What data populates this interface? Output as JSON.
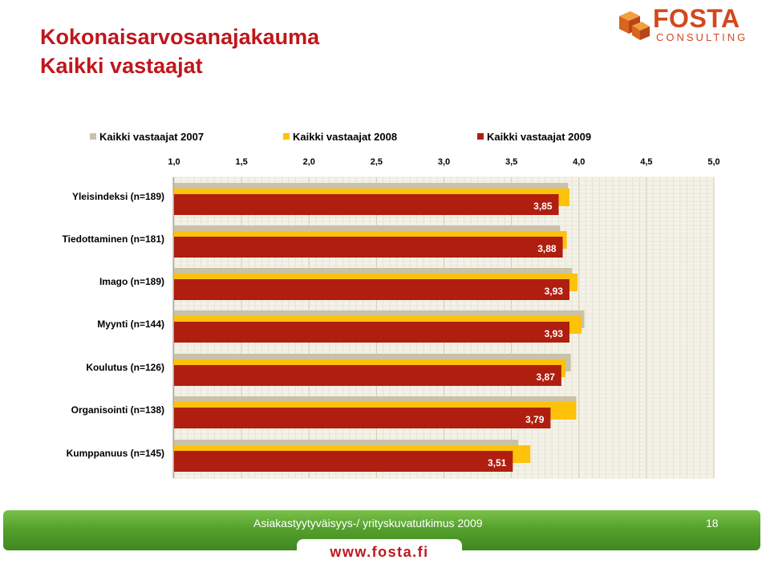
{
  "slide": {
    "title_line1": "Kokonaisarvosanajakauma",
    "title_line2": "Kaikki vastaajat"
  },
  "logo": {
    "name": "FOSTA",
    "sub": "CONSULTING"
  },
  "footer": {
    "text": "Asiakastyytyväisyys-/ yrityskuvatutkimus 2009",
    "page_number": "18",
    "url": "www.fosta.fi"
  },
  "colors": {
    "series_2007": "#c9c2a8",
    "series_2008": "#ffc20a",
    "series_2009": "#b01e10",
    "title": "#c0161c",
    "footer_green": "#55a12d",
    "plot_background": "#f5f3e8"
  },
  "chart_data": {
    "type": "bar",
    "orientation": "horizontal",
    "categories": [
      "Yleisindeksi (n=189)",
      "Tiedottaminen (n=181)",
      "Imago (n=189)",
      "Myynti (n=144)",
      "Koulutus (n=126)",
      "Organisointi (n=138)",
      "Kumppanuus (n=145)"
    ],
    "series": [
      {
        "name": "Kaikki vastaajat 2007",
        "values": [
          3.92,
          3.86,
          3.95,
          4.04,
          3.94,
          3.98,
          3.55
        ]
      },
      {
        "name": "Kaikki vastaajat 2008",
        "values": [
          3.93,
          3.91,
          3.99,
          4.02,
          3.9,
          3.98,
          3.64
        ]
      },
      {
        "name": "Kaikki vastaajat 2009",
        "values": [
          3.85,
          3.88,
          3.93,
          3.93,
          3.87,
          3.79,
          3.51
        ]
      }
    ],
    "data_labels": [
      "3,85",
      "3,88",
      "3,93",
      "3,93",
      "3,87",
      "3,79",
      "3,51"
    ],
    "xlim": [
      1.0,
      5.0
    ],
    "xticks": [
      "1,0",
      "1,5",
      "2,0",
      "2,5",
      "3,0",
      "3,5",
      "4,0",
      "4,5",
      "5,0"
    ],
    "legend_position": "top",
    "grid": true
  }
}
